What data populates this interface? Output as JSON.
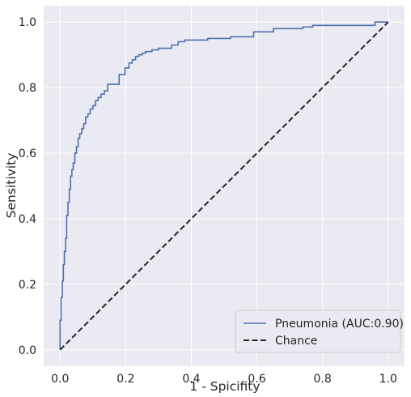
{
  "colors": {
    "plot_background": "#eaeaf2",
    "grid": "#ffffff",
    "roc_line": "#4c72b0",
    "chance_line": "#262626",
    "text": "#262626"
  },
  "chart_data": {
    "type": "line",
    "title": "",
    "xlabel": "1 - Spicifity",
    "ylabel": "Sensitivity",
    "xlim": [
      -0.05,
      1.05
    ],
    "ylim": [
      -0.05,
      1.05
    ],
    "xticks": [
      0.0,
      0.2,
      0.4,
      0.6,
      0.8,
      1.0
    ],
    "yticks": [
      0.0,
      0.2,
      0.4,
      0.6,
      0.8,
      1.0
    ],
    "xtick_labels": [
      "0.0",
      "0.2",
      "0.4",
      "0.6",
      "0.8",
      "1.0"
    ],
    "ytick_labels": [
      "0.0",
      "0.2",
      "0.4",
      "0.6",
      "0.8",
      "1.0"
    ],
    "grid": true,
    "legend_position": "bottom-right",
    "series": [
      {
        "name": "Pneumonia (AUC:0.90)",
        "style": "solid",
        "color": "#4c72b0",
        "x": [
          0.0,
          0.0,
          0.003,
          0.003,
          0.007,
          0.007,
          0.01,
          0.01,
          0.013,
          0.013,
          0.017,
          0.017,
          0.02,
          0.02,
          0.024,
          0.024,
          0.028,
          0.028,
          0.032,
          0.032,
          0.036,
          0.036,
          0.04,
          0.04,
          0.045,
          0.045,
          0.05,
          0.05,
          0.055,
          0.055,
          0.06,
          0.06,
          0.066,
          0.066,
          0.072,
          0.072,
          0.078,
          0.078,
          0.085,
          0.085,
          0.092,
          0.092,
          0.1,
          0.1,
          0.108,
          0.108,
          0.116,
          0.116,
          0.125,
          0.125,
          0.135,
          0.135,
          0.145,
          0.145,
          0.18,
          0.18,
          0.198,
          0.198,
          0.21,
          0.21,
          0.22,
          0.22,
          0.23,
          0.23,
          0.24,
          0.24,
          0.25,
          0.25,
          0.26,
          0.26,
          0.28,
          0.28,
          0.3,
          0.3,
          0.34,
          0.34,
          0.36,
          0.36,
          0.38,
          0.38,
          0.45,
          0.45,
          0.52,
          0.52,
          0.59,
          0.59,
          0.65,
          0.65,
          0.74,
          0.74,
          0.77,
          0.77,
          0.96,
          0.96,
          1.0
        ],
        "y": [
          0.0,
          0.09,
          0.09,
          0.16,
          0.16,
          0.21,
          0.21,
          0.26,
          0.26,
          0.3,
          0.3,
          0.34,
          0.34,
          0.41,
          0.41,
          0.45,
          0.45,
          0.49,
          0.49,
          0.53,
          0.53,
          0.55,
          0.55,
          0.57,
          0.57,
          0.6,
          0.6,
          0.62,
          0.62,
          0.645,
          0.645,
          0.66,
          0.66,
          0.675,
          0.675,
          0.69,
          0.69,
          0.71,
          0.71,
          0.72,
          0.72,
          0.735,
          0.735,
          0.745,
          0.745,
          0.76,
          0.76,
          0.77,
          0.77,
          0.78,
          0.78,
          0.79,
          0.79,
          0.81,
          0.81,
          0.84,
          0.84,
          0.86,
          0.86,
          0.875,
          0.875,
          0.885,
          0.885,
          0.895,
          0.895,
          0.9,
          0.9,
          0.905,
          0.905,
          0.91,
          0.91,
          0.915,
          0.915,
          0.92,
          0.92,
          0.93,
          0.93,
          0.94,
          0.94,
          0.945,
          0.945,
          0.95,
          0.95,
          0.955,
          0.955,
          0.97,
          0.97,
          0.98,
          0.98,
          0.985,
          0.985,
          0.99,
          0.99,
          1.0,
          1.0
        ]
      },
      {
        "name": "Chance",
        "style": "dashed",
        "color": "#262626",
        "x": [
          0.0,
          1.0
        ],
        "y": [
          0.0,
          1.0
        ]
      }
    ]
  }
}
